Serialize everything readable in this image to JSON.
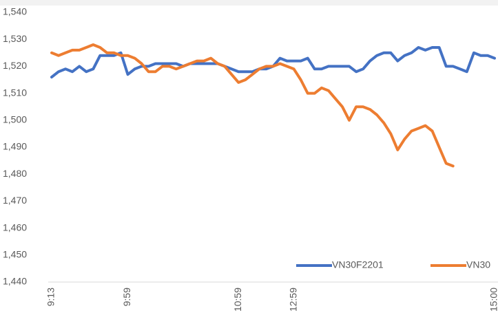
{
  "chart_data": {
    "type": "line",
    "categories": [
      "9:13",
      null,
      null,
      null,
      null,
      null,
      null,
      null,
      null,
      null,
      null,
      "9:59",
      null,
      null,
      null,
      null,
      null,
      null,
      null,
      null,
      null,
      null,
      null,
      null,
      null,
      null,
      null,
      "10:59",
      null,
      null,
      null,
      null,
      null,
      null,
      null,
      "12:59",
      null,
      null,
      null,
      null,
      null,
      null,
      null,
      null,
      null,
      null,
      null,
      null,
      null,
      null,
      null,
      null,
      null,
      null,
      null,
      null,
      null,
      null,
      null,
      null,
      null,
      null,
      null,
      null,
      "15:00"
    ],
    "series": [
      {
        "name": "VN30F2201",
        "color": "#4472c4",
        "values": [
          1516,
          1518,
          1519,
          1518,
          1520,
          1518,
          1519,
          1524,
          1524,
          1524,
          1525,
          1517,
          1519,
          1520,
          1520,
          1521,
          1521,
          1521,
          1521,
          1520,
          1521,
          1521,
          1521,
          1521,
          1521,
          1520,
          1519,
          1518,
          1518,
          1518,
          1519,
          1519,
          1520,
          1523,
          1522,
          1522,
          1522,
          1523,
          1519,
          1519,
          1520,
          1520,
          1520,
          1520,
          1518,
          1519,
          1522,
          1524,
          1525,
          1525,
          1522,
          1524,
          1525,
          1527,
          1526,
          1527,
          1527,
          1520,
          1520,
          1519,
          1518,
          1525,
          1524,
          1524,
          1523
        ]
      },
      {
        "name": "VN30",
        "color": "#ed7d31",
        "values": [
          1525,
          1524,
          1525,
          1526,
          1526,
          1527,
          1528,
          1527,
          1525,
          1525,
          1524,
          1524,
          1523,
          1521,
          1518,
          1518,
          1520,
          1520,
          1519,
          1520,
          1521,
          1522,
          1522,
          1523,
          1521,
          1520,
          1517,
          1514,
          1515,
          1517,
          1519,
          1520,
          1520,
          1521,
          1520,
          1519,
          1515,
          1510,
          1510,
          1512,
          1511,
          1508,
          1505,
          1500,
          1505,
          1505,
          1504,
          1502,
          1499,
          1495,
          1489,
          1493,
          1496,
          1497,
          1498,
          1496,
          1490,
          1484,
          1483,
          null,
          null,
          null,
          null,
          null,
          null
        ]
      }
    ],
    "ylim": [
      1440,
      1540
    ],
    "yticks": [
      {
        "value": 1440,
        "label": "1,440"
      },
      {
        "value": 1450,
        "label": "1,450"
      },
      {
        "value": 1460,
        "label": "1,460"
      },
      {
        "value": 1470,
        "label": "1,470"
      },
      {
        "value": 1480,
        "label": "1,480"
      },
      {
        "value": 1490,
        "label": "1,490"
      },
      {
        "value": 1500,
        "label": "1,500"
      },
      {
        "value": 1510,
        "label": "1,510"
      },
      {
        "value": 1520,
        "label": "1,520"
      },
      {
        "value": 1530,
        "label": "1,530"
      },
      {
        "value": 1540,
        "label": "1,540"
      }
    ],
    "grid": false,
    "legend": "lower right"
  }
}
